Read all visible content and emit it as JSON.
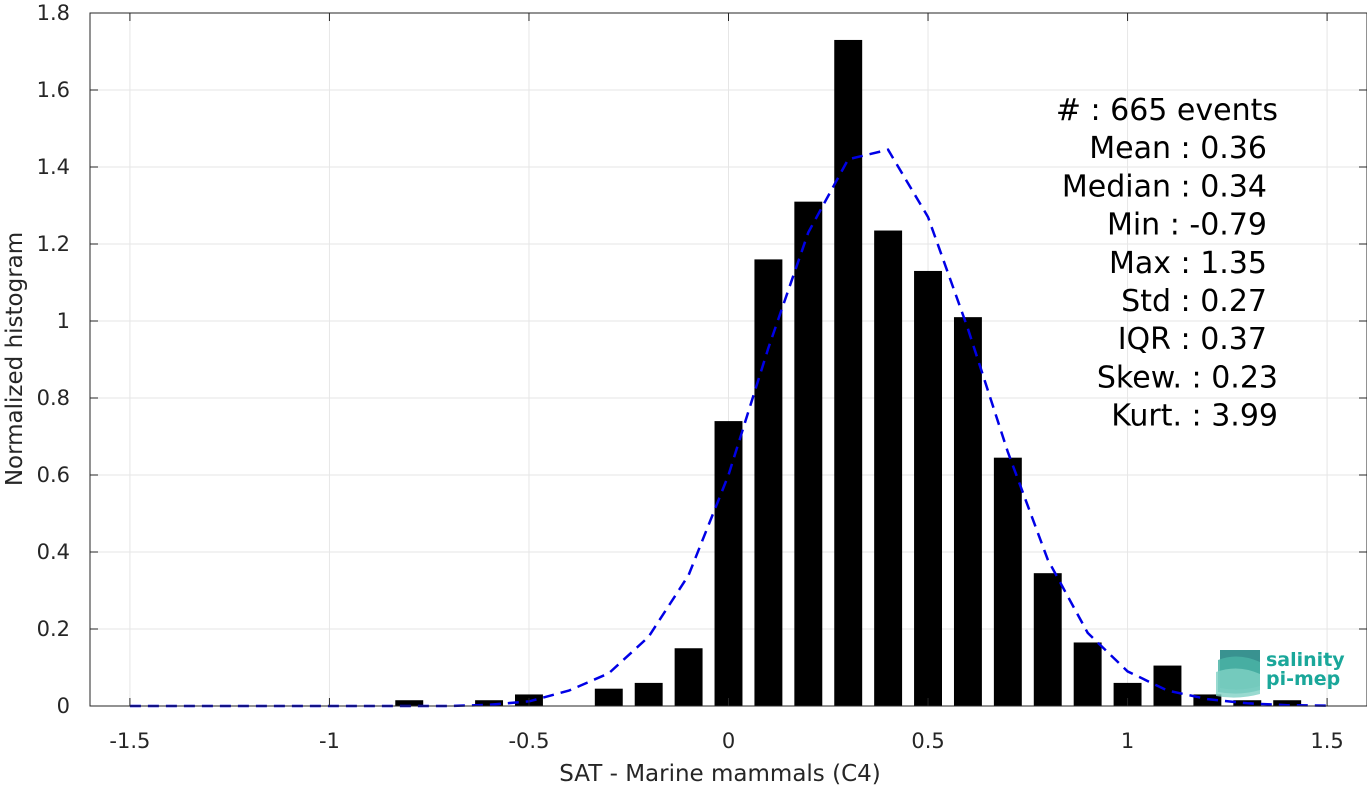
{
  "chart_data": {
    "type": "bar",
    "xlabel": "SAT - Marine mammals (C4)",
    "ylabel": "Normalized histogram",
    "xlim": [
      -1.6,
      1.6
    ],
    "ylim": [
      0,
      1.8
    ],
    "xticks": [
      -1.5,
      -1,
      -0.5,
      0,
      0.5,
      1,
      1.5
    ],
    "xtick_labels": [
      "-1.5",
      "-1",
      "-0.5",
      "0",
      "0.5",
      "1",
      "1.5"
    ],
    "yticks": [
      0,
      0.2,
      0.4,
      0.6,
      0.8,
      1,
      1.2,
      1.4,
      1.6,
      1.8
    ],
    "ytick_labels": [
      "0",
      "0.2",
      "0.4",
      "0.6",
      "0.8",
      "1",
      "1.2",
      "1.4",
      "1.6",
      "1.8"
    ],
    "grid": true,
    "bar_color": "#000000",
    "bar_width": 0.07,
    "bars": [
      {
        "x": -0.8,
        "y": 0.015
      },
      {
        "x": -0.6,
        "y": 0.015
      },
      {
        "x": -0.5,
        "y": 0.03
      },
      {
        "x": -0.3,
        "y": 0.045
      },
      {
        "x": -0.2,
        "y": 0.06
      },
      {
        "x": -0.1,
        "y": 0.15
      },
      {
        "x": 0.0,
        "y": 0.74
      },
      {
        "x": 0.1,
        "y": 1.16
      },
      {
        "x": 0.2,
        "y": 1.31
      },
      {
        "x": 0.3,
        "y": 1.73
      },
      {
        "x": 0.4,
        "y": 1.235
      },
      {
        "x": 0.5,
        "y": 1.13
      },
      {
        "x": 0.6,
        "y": 1.01
      },
      {
        "x": 0.7,
        "y": 0.645
      },
      {
        "x": 0.8,
        "y": 0.345
      },
      {
        "x": 0.9,
        "y": 0.165
      },
      {
        "x": 1.0,
        "y": 0.06
      },
      {
        "x": 1.1,
        "y": 0.105
      },
      {
        "x": 1.2,
        "y": 0.03
      },
      {
        "x": 1.3,
        "y": 0.015
      },
      {
        "x": 1.4,
        "y": 0.015
      }
    ],
    "fit_line": {
      "style": "dashed",
      "color": "#0000e6",
      "x": [
        -1.5,
        -1.4,
        -1.3,
        -1.2,
        -1.1,
        -1.0,
        -0.9,
        -0.8,
        -0.7,
        -0.6,
        -0.5,
        -0.4,
        -0.3,
        -0.2,
        -0.1,
        0.0,
        0.1,
        0.2,
        0.3,
        0.4,
        0.5,
        0.6,
        0.7,
        0.8,
        0.9,
        1.0,
        1.1,
        1.2,
        1.3,
        1.4,
        1.5
      ],
      "y": [
        0,
        0,
        0,
        0,
        0,
        0,
        0,
        0,
        0,
        0.003,
        0.012,
        0.04,
        0.085,
        0.18,
        0.34,
        0.6,
        0.93,
        1.23,
        1.42,
        1.445,
        1.27,
        0.98,
        0.66,
        0.38,
        0.19,
        0.09,
        0.04,
        0.018,
        0.007,
        0.002,
        0.001
      ]
    },
    "stats": [
      "#  : 665 events",
      "Mean : 0.36",
      "Median : 0.34",
      "Min : -0.79",
      "Max : 1.35",
      "Std : 0.27",
      "IQR : 0.37",
      "Skew. : 0.23",
      "Kurt. : 3.99"
    ]
  },
  "logo": {
    "line1": "salinity",
    "line2": "pi-mep",
    "color": "#1aa79a"
  }
}
